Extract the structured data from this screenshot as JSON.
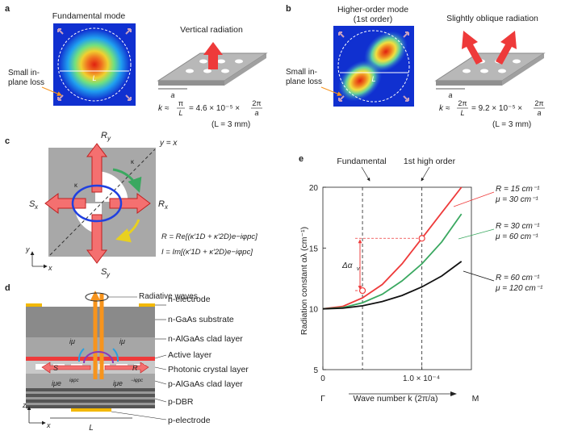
{
  "panel_a": {
    "letter": "a",
    "mode_title": "Fundamental mode",
    "loss_line1": "Small in-",
    "loss_line2": "plane loss",
    "L_label": "L",
    "radiation_title": "Vertical radiation",
    "a_label": "a",
    "k_prefix": "k ≈",
    "k_num": "π",
    "k_den": "L",
    "k_eq": "= 4.6 × 10⁻⁵ ×",
    "k_num2": "2π",
    "k_den2": "a",
    "condition": "(L = 3 mm)"
  },
  "panel_b": {
    "letter": "b",
    "mode_title1": "Higher-order mode",
    "mode_title2": "(1st order)",
    "loss_line1": "Small in-",
    "loss_line2": "plane loss",
    "L_label": "L",
    "radiation_title": "Slightly oblique radiation",
    "a_label": "a",
    "k_prefix": "k ≈",
    "k_num": "2π",
    "k_den": "L",
    "k_eq": "= 9.2 × 10⁻⁵ ×",
    "k_num2": "2π",
    "k_den2": "a",
    "condition": "(L = 3 mm)"
  },
  "panel_c": {
    "letter": "c",
    "Ry": "R",
    "Ry_sub": "y",
    "Sy": "S",
    "Sy_sub": "y",
    "Rx": "R",
    "Rx_sub": "x",
    "Sx": "S",
    "Sx_sub": "x",
    "diag": "y = x",
    "k2d_plus": "κ",
    "k1d": "κ",
    "eq_R": "R = Re[(κ′1D + κ′2D)e−iφpc]",
    "eq_I": "I = Im[(κ′1D + κ′2D)e−iφpc]",
    "axis_y": "y",
    "axis_x": "x"
  },
  "panel_d": {
    "letter": "d",
    "radiative": "Radiative waves",
    "layers": [
      "n-electrode",
      "n-GaAs substrate",
      "n-AlGaAs clad layer",
      "Active layer",
      "Photonic crystal layer",
      "p-AlGaAs clad layer",
      "p-DBR",
      "p-electrode"
    ],
    "iu1": "iμ",
    "iu2": "iμ",
    "S": "S",
    "R": "R",
    "iue1": "iμe",
    "iue1_sup": "iφpc",
    "iue2": "iμe",
    "iue2_sup": "−iφpc",
    "L": "L",
    "axis_z": "z",
    "axis_x": "x"
  },
  "panel_e": {
    "letter": "e",
    "fundamental": "Fundamental",
    "high_order": "1st high order",
    "ylabel": "Radiation constant αλ (cm⁻¹)",
    "xlabel": "Wave number k (2π/a)",
    "x_gamma": "Γ",
    "x_zero": "0",
    "x_mid": "1.0 × 10⁻⁴",
    "x_M": "M",
    "yticks": [
      "20",
      "15",
      "10",
      "5"
    ],
    "delta": "Δα",
    "delta_sub": "v",
    "legend": [
      {
        "R": "R = 15 cm⁻¹",
        "mu": "μ = 30 cm⁻¹",
        "color": "#ee3a3a"
      },
      {
        "R": "R = 30 cm⁻¹",
        "mu": "μ = 60 cm⁻¹",
        "color": "#3aa860"
      },
      {
        "R": "R = 60 cm⁻¹",
        "mu": "μ = 120 cm⁻¹",
        "color": "#111111"
      }
    ]
  },
  "chart_data": {
    "type": "line",
    "xlabel": "Wave number k (2π/a)",
    "ylabel": "Radiation constant αλ (cm⁻¹)",
    "ylim": [
      5,
      20
    ],
    "xlim": [
      0,
      0.00015
    ],
    "x": [
      0,
      2e-05,
      4e-05,
      6e-05,
      8e-05,
      0.0001,
      0.00012,
      0.00014
    ],
    "series": [
      {
        "name": "R = 15 cm⁻¹, μ = 30 cm⁻¹",
        "color": "#ee3a3a",
        "values": [
          10.0,
          10.2,
          10.9,
          12.0,
          13.7,
          15.8,
          17.9,
          20.0
        ]
      },
      {
        "name": "R = 30 cm⁻¹, μ = 60 cm⁻¹",
        "color": "#3aa860",
        "values": [
          10.0,
          10.1,
          10.5,
          11.2,
          12.3,
          13.7,
          15.5,
          17.8
        ]
      },
      {
        "name": "R = 60 cm⁻¹, μ = 120 cm⁻¹",
        "color": "#111111",
        "values": [
          10.0,
          10.05,
          10.25,
          10.6,
          11.1,
          11.8,
          12.7,
          13.9
        ]
      }
    ],
    "markers": [
      {
        "x": 4e-05,
        "y": 11.5
      },
      {
        "x": 0.0001,
        "y": 15.8
      }
    ],
    "vlines": [
      4e-05,
      0.0001
    ]
  }
}
